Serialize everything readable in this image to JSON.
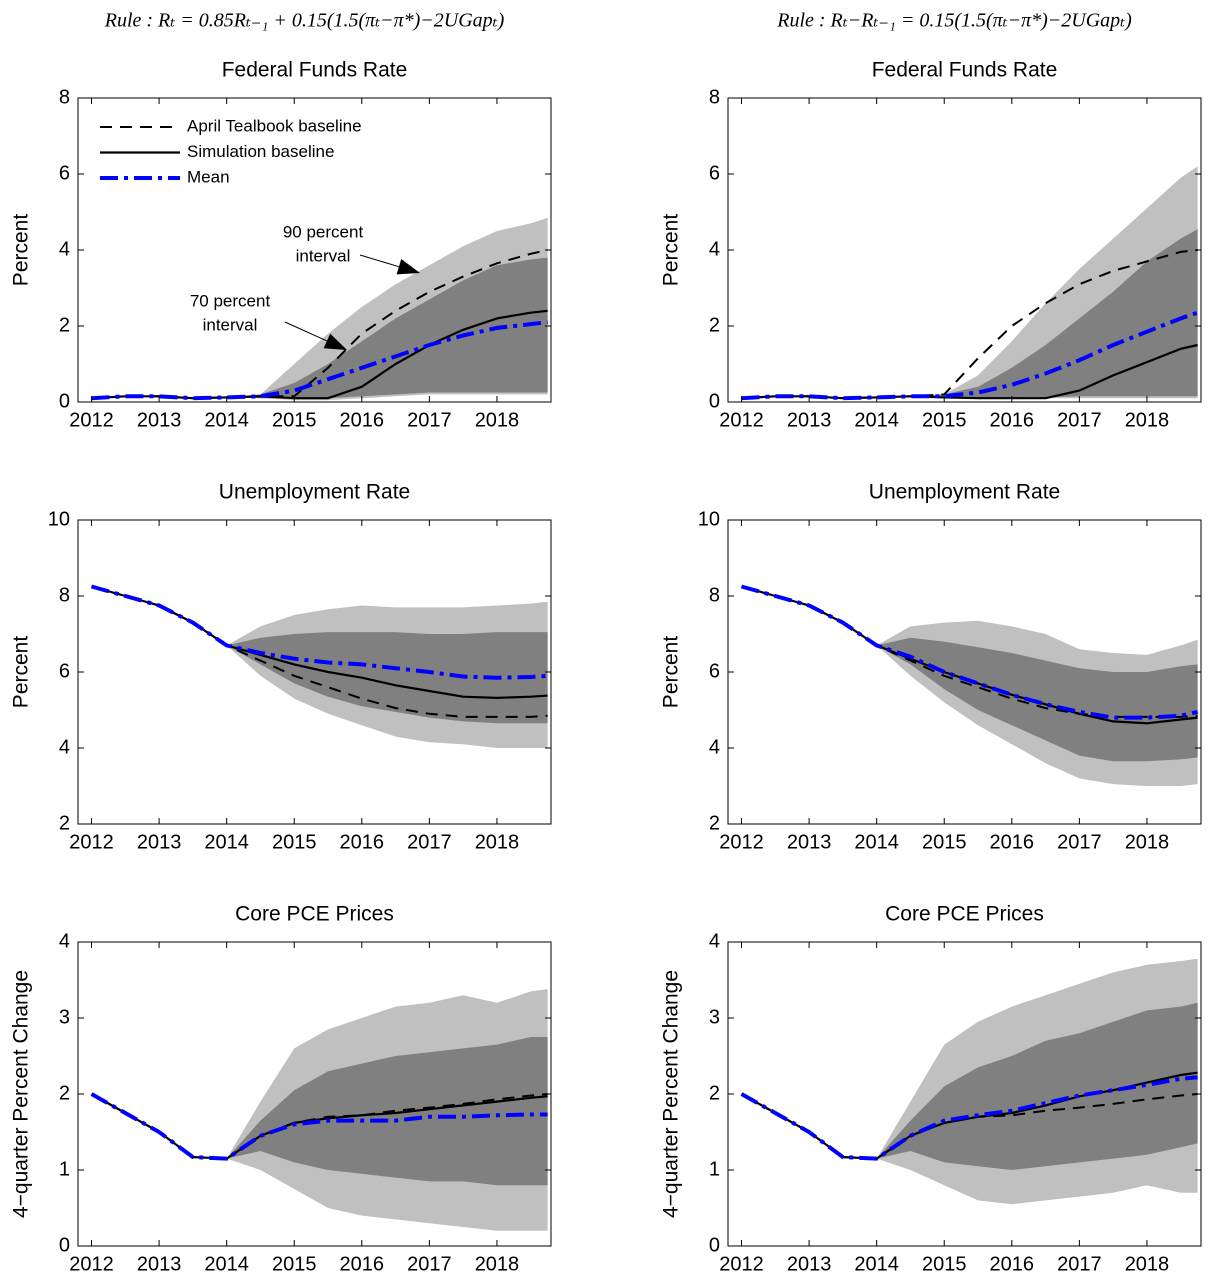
{
  "chart_data": [
    {
      "type": "fan-line",
      "subtitle": "Rule : Rₜ = 0.85Rₜ₋₁ + 0.15(1.5(πₜ−π*)−2UGapₜ)",
      "title": "Federal Funds Rate",
      "ylabel": "Percent",
      "x": [
        2012,
        2012.5,
        2013,
        2013.5,
        2014,
        2014.5,
        2015,
        2015.5,
        2016,
        2016.5,
        2017,
        2017.5,
        2018,
        2018.5,
        2018.75
      ],
      "xlim": [
        2011.8,
        2018.8
      ],
      "xticks": [
        2012,
        2013,
        2014,
        2015,
        2016,
        2017,
        2018
      ],
      "ylim": [
        0,
        8
      ],
      "yticks": [
        0,
        2,
        4,
        6,
        8
      ],
      "legend": true,
      "bands": [
        {
          "color": "#c0c0c0",
          "low": [
            0.1,
            0.15,
            0.15,
            0.1,
            0.12,
            0.1,
            0.05,
            0.05,
            0.1,
            0.15,
            0.2,
            0.2,
            0.2,
            0.2,
            0.2
          ],
          "high": [
            0.1,
            0.15,
            0.15,
            0.1,
            0.12,
            0.2,
            1.0,
            1.8,
            2.5,
            3.1,
            3.6,
            4.1,
            4.5,
            4.7,
            4.85
          ]
        },
        {
          "color": "#808080",
          "low": [
            0.1,
            0.15,
            0.15,
            0.1,
            0.12,
            0.1,
            0.1,
            0.1,
            0.15,
            0.2,
            0.25,
            0.25,
            0.25,
            0.25,
            0.25
          ],
          "high": [
            0.1,
            0.15,
            0.15,
            0.1,
            0.12,
            0.2,
            0.5,
            1.0,
            1.6,
            2.2,
            2.7,
            3.2,
            3.6,
            3.75,
            3.8
          ]
        }
      ],
      "series": [
        {
          "name": "April Tealbook baseline",
          "color": "#000000",
          "style": "dashed",
          "values": [
            0.1,
            0.15,
            0.15,
            0.1,
            0.12,
            0.15,
            0.15,
            0.9,
            1.8,
            2.4,
            2.9,
            3.3,
            3.65,
            3.9,
            4.0
          ]
        },
        {
          "name": "Simulation baseline",
          "color": "#000000",
          "style": "solid",
          "values": [
            0.1,
            0.15,
            0.15,
            0.1,
            0.12,
            0.15,
            0.1,
            0.1,
            0.4,
            1.0,
            1.5,
            1.9,
            2.2,
            2.35,
            2.4
          ]
        },
        {
          "name": "Mean",
          "color": "#0000ff",
          "style": "dashdot",
          "values": [
            0.1,
            0.15,
            0.15,
            0.1,
            0.12,
            0.15,
            0.3,
            0.6,
            0.9,
            1.2,
            1.5,
            1.75,
            1.95,
            2.05,
            2.1
          ]
        }
      ],
      "annotations": [
        {
          "lines": [
            "90 percent",
            "interval"
          ]
        },
        {
          "lines": [
            "70 percent",
            "interval"
          ]
        }
      ]
    },
    {
      "type": "fan-line",
      "subtitle": "Rule : Rₜ−Rₜ₋₁ = 0.15(1.5(πₜ−π*)−2UGapₜ)",
      "title": "Federal Funds Rate",
      "ylabel": "Percent",
      "x": [
        2012,
        2012.5,
        2013,
        2013.5,
        2014,
        2014.5,
        2015,
        2015.5,
        2016,
        2016.5,
        2017,
        2017.5,
        2018,
        2018.5,
        2018.75
      ],
      "xlim": [
        2011.8,
        2018.8
      ],
      "xticks": [
        2012,
        2013,
        2014,
        2015,
        2016,
        2017,
        2018
      ],
      "ylim": [
        0,
        8
      ],
      "yticks": [
        0,
        2,
        4,
        6,
        8
      ],
      "legend": false,
      "bands": [
        {
          "color": "#c0c0c0",
          "low": [
            0.1,
            0.15,
            0.15,
            0.1,
            0.12,
            0.15,
            0.1,
            0.1,
            0.1,
            0.1,
            0.1,
            0.1,
            0.1,
            0.1,
            0.1
          ],
          "high": [
            0.1,
            0.15,
            0.15,
            0.1,
            0.12,
            0.15,
            0.2,
            0.7,
            1.6,
            2.6,
            3.5,
            4.3,
            5.1,
            5.9,
            6.2
          ]
        },
        {
          "color": "#808080",
          "low": [
            0.1,
            0.15,
            0.15,
            0.1,
            0.12,
            0.15,
            0.1,
            0.1,
            0.1,
            0.12,
            0.15,
            0.15,
            0.15,
            0.15,
            0.15
          ],
          "high": [
            0.1,
            0.15,
            0.15,
            0.1,
            0.12,
            0.15,
            0.2,
            0.4,
            0.9,
            1.5,
            2.2,
            2.9,
            3.7,
            4.3,
            4.55
          ]
        }
      ],
      "series": [
        {
          "color": "#000000",
          "style": "dashed",
          "values": [
            0.1,
            0.15,
            0.15,
            0.1,
            0.12,
            0.15,
            0.2,
            1.15,
            2.0,
            2.6,
            3.1,
            3.45,
            3.7,
            3.95,
            4.0
          ]
        },
        {
          "color": "#000000",
          "style": "solid",
          "values": [
            0.1,
            0.15,
            0.15,
            0.1,
            0.12,
            0.15,
            0.12,
            0.1,
            0.1,
            0.1,
            0.3,
            0.7,
            1.05,
            1.4,
            1.5
          ]
        },
        {
          "color": "#0000ff",
          "style": "dashdot",
          "values": [
            0.1,
            0.15,
            0.15,
            0.1,
            0.12,
            0.15,
            0.15,
            0.25,
            0.45,
            0.75,
            1.1,
            1.5,
            1.85,
            2.2,
            2.35
          ]
        }
      ]
    },
    {
      "type": "fan-line",
      "title": "Unemployment Rate",
      "ylabel": "Percent",
      "x": [
        2012,
        2012.5,
        2013,
        2013.5,
        2014,
        2014.5,
        2015,
        2015.5,
        2016,
        2016.5,
        2017,
        2017.5,
        2018,
        2018.5,
        2018.75
      ],
      "xlim": [
        2011.8,
        2018.8
      ],
      "xticks": [
        2012,
        2013,
        2014,
        2015,
        2016,
        2017,
        2018
      ],
      "ylim": [
        2,
        10
      ],
      "yticks": [
        2,
        4,
        6,
        8,
        10
      ],
      "legend": false,
      "bands": [
        {
          "color": "#c0c0c0",
          "low": [
            8.25,
            8.0,
            7.75,
            7.3,
            6.7,
            5.9,
            5.3,
            4.9,
            4.6,
            4.3,
            4.15,
            4.1,
            4.0,
            4.0,
            4.0
          ],
          "high": [
            8.25,
            8.0,
            7.75,
            7.3,
            6.7,
            7.2,
            7.5,
            7.65,
            7.75,
            7.7,
            7.7,
            7.7,
            7.75,
            7.8,
            7.85
          ]
        },
        {
          "color": "#808080",
          "low": [
            8.25,
            8.0,
            7.75,
            7.3,
            6.7,
            6.2,
            5.7,
            5.35,
            5.1,
            4.95,
            4.8,
            4.7,
            4.65,
            4.65,
            4.65
          ],
          "high": [
            8.25,
            8.0,
            7.75,
            7.3,
            6.7,
            6.9,
            7.0,
            7.05,
            7.05,
            7.05,
            7.0,
            7.0,
            7.05,
            7.05,
            7.05
          ]
        }
      ],
      "series": [
        {
          "color": "#000000",
          "style": "dashed",
          "values": [
            8.25,
            8.0,
            7.75,
            7.3,
            6.7,
            6.3,
            5.9,
            5.6,
            5.3,
            5.05,
            4.9,
            4.82,
            4.82,
            4.82,
            4.85
          ]
        },
        {
          "color": "#000000",
          "style": "solid",
          "values": [
            8.25,
            8.0,
            7.75,
            7.3,
            6.7,
            6.45,
            6.2,
            6.0,
            5.85,
            5.65,
            5.5,
            5.35,
            5.32,
            5.35,
            5.38
          ]
        },
        {
          "color": "#0000ff",
          "style": "dashdot",
          "values": [
            8.25,
            8.0,
            7.75,
            7.3,
            6.7,
            6.5,
            6.35,
            6.25,
            6.2,
            6.1,
            6.0,
            5.88,
            5.85,
            5.87,
            5.9
          ]
        }
      ]
    },
    {
      "type": "fan-line",
      "title": "Unemployment Rate",
      "ylabel": "Percent",
      "x": [
        2012,
        2012.5,
        2013,
        2013.5,
        2014,
        2014.5,
        2015,
        2015.5,
        2016,
        2016.5,
        2017,
        2017.5,
        2018,
        2018.5,
        2018.75
      ],
      "xlim": [
        2011.8,
        2018.8
      ],
      "xticks": [
        2012,
        2013,
        2014,
        2015,
        2016,
        2017,
        2018
      ],
      "ylim": [
        2,
        10
      ],
      "yticks": [
        2,
        4,
        6,
        8,
        10
      ],
      "legend": false,
      "bands": [
        {
          "color": "#c0c0c0",
          "low": [
            8.25,
            8.0,
            7.75,
            7.3,
            6.7,
            5.9,
            5.2,
            4.6,
            4.1,
            3.6,
            3.2,
            3.05,
            3.0,
            3.0,
            3.05
          ],
          "high": [
            8.25,
            8.0,
            7.75,
            7.3,
            6.7,
            7.2,
            7.3,
            7.35,
            7.2,
            7.0,
            6.6,
            6.5,
            6.45,
            6.7,
            6.85
          ]
        },
        {
          "color": "#808080",
          "low": [
            8.25,
            8.0,
            7.75,
            7.3,
            6.7,
            6.2,
            5.55,
            5.0,
            4.6,
            4.2,
            3.8,
            3.65,
            3.65,
            3.7,
            3.75
          ],
          "high": [
            8.25,
            8.0,
            7.75,
            7.3,
            6.7,
            6.9,
            6.8,
            6.65,
            6.5,
            6.3,
            6.1,
            6.0,
            6.0,
            6.15,
            6.2
          ]
        }
      ],
      "series": [
        {
          "color": "#000000",
          "style": "dashed",
          "values": [
            8.25,
            8.0,
            7.75,
            7.3,
            6.7,
            6.3,
            5.9,
            5.6,
            5.3,
            5.05,
            4.9,
            4.82,
            4.82,
            4.82,
            4.85
          ]
        },
        {
          "color": "#000000",
          "style": "solid",
          "values": [
            8.25,
            8.0,
            7.75,
            7.3,
            6.7,
            6.35,
            6.0,
            5.7,
            5.4,
            5.15,
            4.9,
            4.7,
            4.65,
            4.75,
            4.8
          ]
        },
        {
          "color": "#0000ff",
          "style": "dashdot",
          "values": [
            8.25,
            8.0,
            7.75,
            7.3,
            6.7,
            6.4,
            6.0,
            5.7,
            5.4,
            5.15,
            4.95,
            4.8,
            4.8,
            4.85,
            4.95
          ]
        }
      ]
    },
    {
      "type": "fan-line",
      "title": "Core PCE Prices",
      "ylabel": "4−quarter Percent Change",
      "x": [
        2012,
        2012.5,
        2013,
        2013.5,
        2014,
        2014.5,
        2015,
        2015.5,
        2016,
        2016.5,
        2017,
        2017.5,
        2018,
        2018.5,
        2018.75
      ],
      "xlim": [
        2011.8,
        2018.8
      ],
      "xticks": [
        2012,
        2013,
        2014,
        2015,
        2016,
        2017,
        2018
      ],
      "ylim": [
        0,
        4
      ],
      "yticks": [
        0,
        1,
        2,
        3,
        4
      ],
      "legend": false,
      "bands": [
        {
          "color": "#c0c0c0",
          "low": [
            2.0,
            1.75,
            1.5,
            1.17,
            1.15,
            1.0,
            0.75,
            0.5,
            0.4,
            0.35,
            0.3,
            0.25,
            0.2,
            0.2,
            0.2
          ],
          "high": [
            2.0,
            1.75,
            1.5,
            1.17,
            1.15,
            1.9,
            2.6,
            2.85,
            3.0,
            3.15,
            3.2,
            3.3,
            3.2,
            3.35,
            3.38
          ]
        },
        {
          "color": "#808080",
          "low": [
            2.0,
            1.75,
            1.5,
            1.17,
            1.15,
            1.25,
            1.1,
            1.0,
            0.95,
            0.9,
            0.85,
            0.85,
            0.8,
            0.8,
            0.8
          ],
          "high": [
            2.0,
            1.75,
            1.5,
            1.17,
            1.15,
            1.65,
            2.05,
            2.3,
            2.4,
            2.5,
            2.55,
            2.6,
            2.65,
            2.75,
            2.75
          ]
        }
      ],
      "series": [
        {
          "color": "#000000",
          "style": "dashed",
          "values": [
            2.0,
            1.75,
            1.5,
            1.17,
            1.15,
            1.45,
            1.62,
            1.7,
            1.72,
            1.78,
            1.82,
            1.87,
            1.93,
            1.98,
            2.0
          ]
        },
        {
          "color": "#000000",
          "style": "solid",
          "values": [
            2.0,
            1.75,
            1.5,
            1.17,
            1.15,
            1.45,
            1.62,
            1.68,
            1.72,
            1.75,
            1.8,
            1.85,
            1.9,
            1.95,
            1.97
          ]
        },
        {
          "color": "#0000ff",
          "style": "dashdot",
          "values": [
            2.0,
            1.75,
            1.5,
            1.17,
            1.15,
            1.45,
            1.6,
            1.65,
            1.65,
            1.65,
            1.7,
            1.7,
            1.72,
            1.73,
            1.73
          ]
        }
      ]
    },
    {
      "type": "fan-line",
      "title": "Core PCE Prices",
      "ylabel": "4−quarter Percent Change",
      "x": [
        2012,
        2012.5,
        2013,
        2013.5,
        2014,
        2014.5,
        2015,
        2015.5,
        2016,
        2016.5,
        2017,
        2017.5,
        2018,
        2018.5,
        2018.75
      ],
      "xlim": [
        2011.8,
        2018.8
      ],
      "xticks": [
        2012,
        2013,
        2014,
        2015,
        2016,
        2017,
        2018
      ],
      "ylim": [
        0,
        4
      ],
      "yticks": [
        0,
        1,
        2,
        3,
        4
      ],
      "legend": false,
      "bands": [
        {
          "color": "#c0c0c0",
          "low": [
            2.0,
            1.75,
            1.5,
            1.17,
            1.15,
            1.0,
            0.8,
            0.6,
            0.55,
            0.6,
            0.65,
            0.7,
            0.8,
            0.7,
            0.7
          ],
          "high": [
            2.0,
            1.75,
            1.5,
            1.17,
            1.15,
            1.9,
            2.65,
            2.95,
            3.15,
            3.3,
            3.45,
            3.6,
            3.7,
            3.75,
            3.78
          ]
        },
        {
          "color": "#808080",
          "low": [
            2.0,
            1.75,
            1.5,
            1.17,
            1.15,
            1.25,
            1.1,
            1.05,
            1.0,
            1.05,
            1.1,
            1.15,
            1.2,
            1.3,
            1.35
          ],
          "high": [
            2.0,
            1.75,
            1.5,
            1.17,
            1.15,
            1.65,
            2.1,
            2.35,
            2.5,
            2.7,
            2.8,
            2.95,
            3.1,
            3.15,
            3.2
          ]
        }
      ],
      "series": [
        {
          "color": "#000000",
          "style": "dashed",
          "values": [
            2.0,
            1.75,
            1.5,
            1.17,
            1.15,
            1.45,
            1.62,
            1.7,
            1.72,
            1.78,
            1.82,
            1.87,
            1.93,
            1.98,
            2.0
          ]
        },
        {
          "color": "#000000",
          "style": "solid",
          "values": [
            2.0,
            1.75,
            1.5,
            1.17,
            1.15,
            1.45,
            1.62,
            1.7,
            1.75,
            1.85,
            1.97,
            2.05,
            2.15,
            2.25,
            2.28
          ]
        },
        {
          "color": "#0000ff",
          "style": "dashdot",
          "values": [
            2.0,
            1.75,
            1.5,
            1.17,
            1.15,
            1.45,
            1.65,
            1.72,
            1.78,
            1.88,
            1.98,
            2.05,
            2.12,
            2.2,
            2.22
          ]
        }
      ]
    }
  ]
}
